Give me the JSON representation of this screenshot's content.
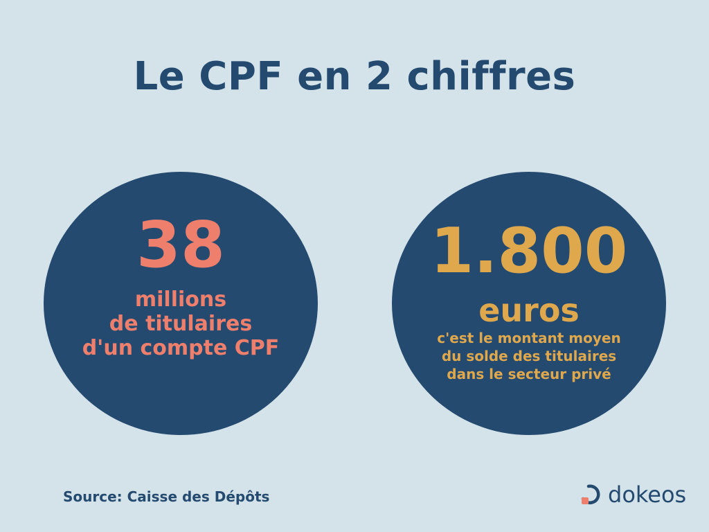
{
  "title": "Le CPF en 2 chiffres",
  "stat_left": {
    "number": "38",
    "lines": [
      "millions",
      "de titulaires",
      "d'un compte CPF"
    ]
  },
  "stat_right": {
    "number": "1.800",
    "unit": "euros",
    "lines": [
      "c'est le montant moyen",
      "du solde des titulaires",
      "dans le secteur privé"
    ]
  },
  "source": "Source: Caisse des Dépôts",
  "brand": {
    "name": "dokeos",
    "icon": "dokeos-logo-icon"
  },
  "colors": {
    "background": "#d4e3ea",
    "navy": "#244a70",
    "coral": "#ee7f6c",
    "gold": "#dfa84d"
  }
}
